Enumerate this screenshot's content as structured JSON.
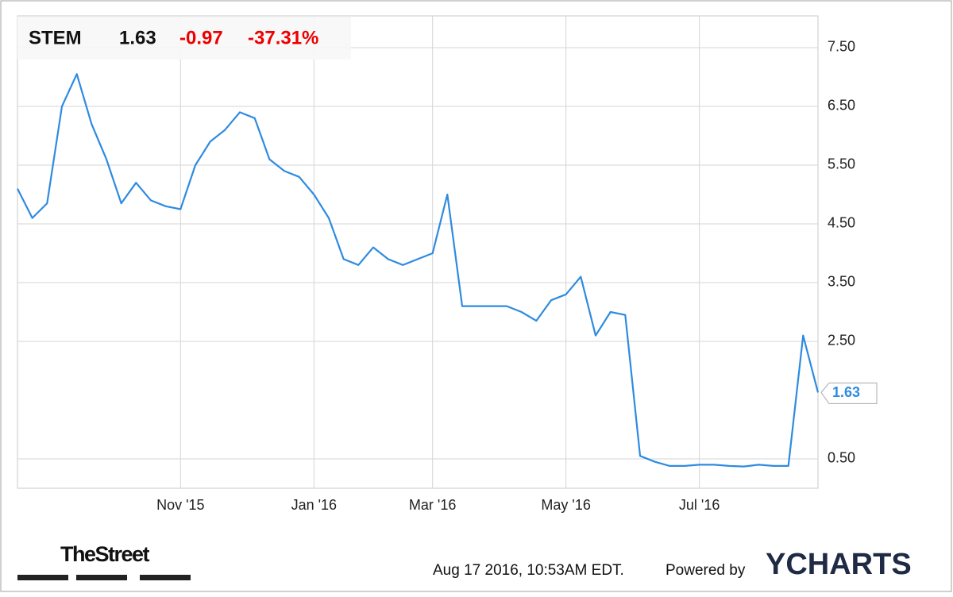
{
  "header": {
    "symbol": "STEM",
    "price": "1.63",
    "change": "-0.97",
    "change_pct": "-37.31%"
  },
  "chart_data": {
    "type": "line",
    "color": "#2e8be0",
    "categories": [
      null,
      null,
      null,
      null,
      null,
      null,
      null,
      null,
      null,
      null,
      null,
      "Nov '15",
      null,
      null,
      null,
      null,
      null,
      null,
      null,
      null,
      "Jan '16",
      null,
      null,
      null,
      null,
      null,
      null,
      null,
      "Mar '16",
      null,
      null,
      null,
      null,
      null,
      null,
      null,
      null,
      "May '16",
      null,
      null,
      null,
      null,
      null,
      null,
      null,
      null,
      "Jul '16",
      null,
      null,
      null,
      null,
      null,
      null,
      null,
      null
    ],
    "values": [
      5.1,
      4.6,
      4.85,
      6.5,
      7.05,
      6.2,
      5.6,
      4.85,
      5.2,
      4.9,
      4.8,
      4.75,
      5.5,
      5.9,
      6.1,
      6.4,
      6.3,
      5.6,
      5.4,
      5.3,
      5.0,
      4.6,
      3.9,
      3.8,
      4.1,
      3.9,
      3.8,
      3.9,
      4.0,
      5.0,
      3.1,
      3.1,
      3.1,
      3.1,
      3.0,
      2.85,
      3.2,
      3.3,
      3.6,
      2.6,
      3.0,
      2.95,
      0.55,
      0.45,
      0.38,
      0.38,
      0.4,
      0.4,
      0.38,
      0.37,
      0.4,
      0.38,
      0.38,
      2.6,
      1.63
    ],
    "ylim": [
      0,
      8.04
    ],
    "yticks": [
      {
        "value": 0.5,
        "label": "0.50"
      },
      {
        "value": 2.5,
        "label": "2.50"
      },
      {
        "value": 3.5,
        "label": "3.50"
      },
      {
        "value": 4.5,
        "label": "4.50"
      },
      {
        "value": 5.5,
        "label": "5.50"
      },
      {
        "value": 6.5,
        "label": "6.50"
      },
      {
        "value": 7.5,
        "label": "7.50"
      }
    ],
    "grid": true
  },
  "footer": {
    "logo": "TheStreet",
    "timestamp": "Aug 17 2016, 10:53AM EDT.",
    "powered_by": "Powered by",
    "brand": "YCHARTS"
  }
}
